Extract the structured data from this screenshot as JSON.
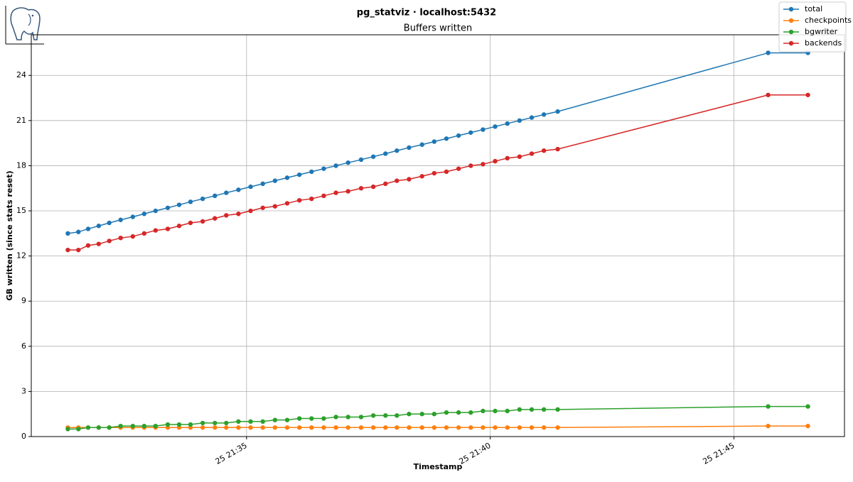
{
  "chart_data": {
    "type": "line",
    "title": "pg_statviz · localhost:5432",
    "subtitle": "Buffers written",
    "x_label": "Timestamp",
    "y_label": "GB written (since stats reset)",
    "x": [
      "25 21:31:20",
      "25 21:31:33",
      "25 21:31:45",
      "25 21:31:58",
      "25 21:32:11",
      "25 21:32:25",
      "25 21:32:40",
      "25 21:32:54",
      "25 21:33:08",
      "25 21:33:23",
      "25 21:33:37",
      "25 21:33:51",
      "25 21:34:06",
      "25 21:34:21",
      "25 21:34:35",
      "25 21:34:50",
      "25 21:35:05",
      "25 21:35:20",
      "25 21:35:35",
      "25 21:35:50",
      "25 21:36:05",
      "25 21:36:20",
      "25 21:36:35",
      "25 21:36:50",
      "25 21:37:05",
      "25 21:37:21",
      "25 21:37:36",
      "25 21:37:51",
      "25 21:38:05",
      "25 21:38:20",
      "25 21:38:36",
      "25 21:38:51",
      "25 21:39:06",
      "25 21:39:21",
      "25 21:39:36",
      "25 21:39:51",
      "25 21:40:06",
      "25 21:40:21",
      "25 21:40:36",
      "25 21:40:51",
      "25 21:41:06",
      "25 21:41:23",
      "25 21:45:42",
      "25 21:46:31"
    ],
    "series": [
      {
        "name": "total",
        "color": "#1f77b4",
        "values": [
          13.5,
          13.6,
          13.8,
          14.0,
          14.2,
          14.4,
          14.6,
          14.8,
          15.0,
          15.2,
          15.4,
          15.6,
          15.8,
          16.0,
          16.2,
          16.4,
          16.6,
          16.8,
          17.0,
          17.2,
          17.4,
          17.6,
          17.8,
          18.0,
          18.2,
          18.4,
          18.6,
          18.8,
          19.0,
          19.2,
          19.4,
          19.6,
          19.8,
          20.0,
          20.2,
          20.4,
          20.6,
          20.8,
          21.0,
          21.2,
          21.4,
          21.6,
          25.5,
          25.5
        ]
      },
      {
        "name": "checkpoints",
        "color": "#ff7f0e",
        "values": [
          0.6,
          0.6,
          0.6,
          0.6,
          0.6,
          0.6,
          0.6,
          0.6,
          0.6,
          0.6,
          0.6,
          0.6,
          0.6,
          0.6,
          0.6,
          0.6,
          0.6,
          0.6,
          0.6,
          0.6,
          0.6,
          0.6,
          0.6,
          0.6,
          0.6,
          0.6,
          0.6,
          0.6,
          0.6,
          0.6,
          0.6,
          0.6,
          0.6,
          0.6,
          0.6,
          0.6,
          0.6,
          0.6,
          0.6,
          0.6,
          0.6,
          0.6,
          0.7,
          0.7
        ]
      },
      {
        "name": "bgwriter",
        "color": "#2ca02c",
        "values": [
          0.5,
          0.5,
          0.6,
          0.6,
          0.6,
          0.7,
          0.7,
          0.7,
          0.7,
          0.8,
          0.8,
          0.8,
          0.9,
          0.9,
          0.9,
          1.0,
          1.0,
          1.0,
          1.1,
          1.1,
          1.2,
          1.2,
          1.2,
          1.3,
          1.3,
          1.3,
          1.4,
          1.4,
          1.4,
          1.5,
          1.5,
          1.5,
          1.6,
          1.6,
          1.6,
          1.7,
          1.7,
          1.7,
          1.8,
          1.8,
          1.8,
          1.8,
          2.0,
          2.0
        ]
      },
      {
        "name": "backends",
        "color": "#d62728",
        "values": [
          12.4,
          12.4,
          12.7,
          12.8,
          13.0,
          13.2,
          13.3,
          13.5,
          13.7,
          13.8,
          14.0,
          14.2,
          14.3,
          14.5,
          14.7,
          14.8,
          15.0,
          15.2,
          15.3,
          15.5,
          15.7,
          15.8,
          16.0,
          16.2,
          16.3,
          16.5,
          16.6,
          16.8,
          17.0,
          17.1,
          17.3,
          17.5,
          17.6,
          17.8,
          18.0,
          18.1,
          18.3,
          18.5,
          18.6,
          18.8,
          19.0,
          19.1,
          22.7,
          22.7
        ]
      }
    ],
    "xlim": [
      "25 21:30:35",
      "25 21:47:16"
    ],
    "xticks": [
      "25 21:35",
      "25 21:40",
      "25 21:45"
    ],
    "ylim": [
      0,
      26.7
    ],
    "yticks": [
      0,
      3,
      6,
      9,
      12,
      15,
      18,
      21,
      24
    ],
    "grid": true,
    "legend": "upper right"
  }
}
